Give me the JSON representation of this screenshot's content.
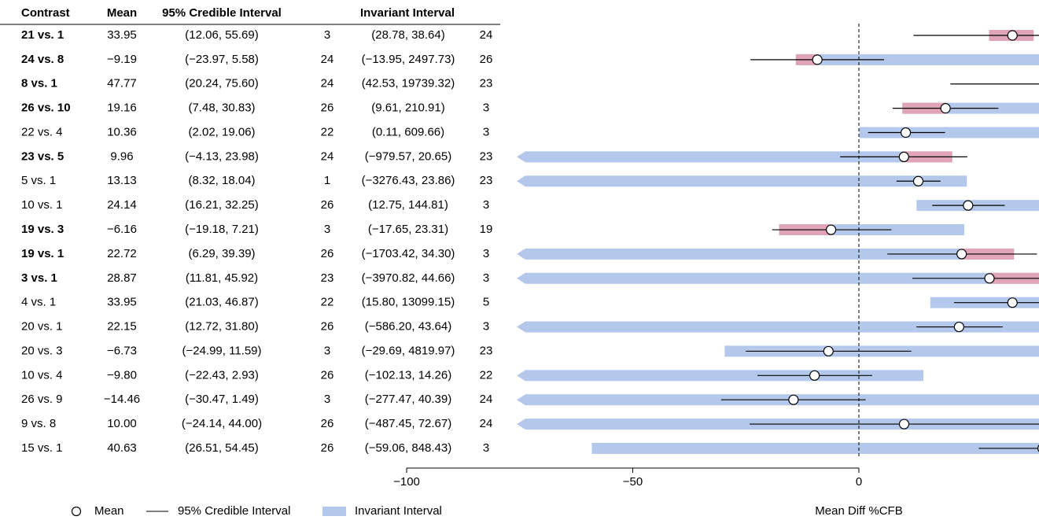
{
  "chart_data": {
    "type": "forest",
    "columns": [
      "Contrast",
      "Mean",
      "95% Credible Interval",
      "Invariant Interval"
    ],
    "categories": [
      "21 vs. 1",
      "24 vs. 8",
      "8 vs. 1",
      "26 vs. 10",
      "22 vs. 4",
      "23 vs. 5",
      "5 vs. 1",
      "10 vs. 1",
      "19 vs. 3",
      "19 vs. 1",
      "3 vs. 1",
      "4 vs. 1",
      "20 vs. 1",
      "20 vs. 3",
      "10 vs. 4",
      "26 vs. 9",
      "9 vs. 8",
      "15 vs. 1"
    ],
    "mean": {
      "name": "Mean",
      "values": [
        33.95,
        -9.19,
        47.77,
        19.16,
        10.36,
        9.96,
        13.13,
        24.14,
        -6.16,
        22.72,
        28.87,
        33.95,
        22.15,
        -6.73,
        -9.8,
        -14.46,
        10.0,
        40.63
      ],
      "value_labels": [
        "33.95",
        "−9.19",
        "47.77",
        "19.16",
        "10.36",
        "9.96",
        "13.13",
        "24.14",
        "−6.16",
        "22.72",
        "28.87",
        "33.95",
        "22.15",
        "−6.73",
        "−9.80",
        "−14.46",
        "10.00",
        "40.63"
      ]
    },
    "credible": {
      "name": "95% Credible Interval",
      "color": "#000000",
      "low": [
        12.06,
        -23.97,
        20.24,
        7.48,
        2.02,
        -4.13,
        8.32,
        16.21,
        -19.18,
        6.29,
        11.81,
        21.03,
        12.72,
        -24.99,
        -22.43,
        -30.47,
        -24.14,
        26.51
      ],
      "high": [
        55.69,
        5.58,
        75.6,
        30.83,
        19.06,
        23.98,
        18.04,
        32.25,
        7.21,
        39.39,
        45.92,
        46.87,
        31.8,
        11.59,
        2.93,
        1.49,
        44.0,
        54.45
      ],
      "labels": [
        "(12.06, 55.69)",
        "(−23.97, 5.58)",
        "(20.24, 75.60)",
        "(7.48, 30.83)",
        "(2.02, 19.06)",
        "(−4.13, 23.98)",
        "(8.32, 18.04)",
        "(16.21, 32.25)",
        "(−19.18, 7.21)",
        "(6.29, 39.39)",
        "(11.81, 45.92)",
        "(21.03, 46.87)",
        "(12.72, 31.80)",
        "(−24.99, 11.59)",
        "(−22.43, 2.93)",
        "(−30.47, 1.49)",
        "(−24.14, 44.00)",
        "(26.51, 54.45)"
      ],
      "n": [
        3,
        24,
        24,
        26,
        22,
        24,
        1,
        26,
        3,
        26,
        23,
        22,
        26,
        3,
        26,
        3,
        26,
        26
      ]
    },
    "invariant": {
      "name": "Invariant Interval",
      "color": "#b4c8ec",
      "conflict_color": "#e0a4b8",
      "low": [
        28.78,
        -13.95,
        42.53,
        9.61,
        0.11,
        -979.57,
        -3276.43,
        12.75,
        -17.65,
        -1703.42,
        -3970.82,
        15.8,
        -586.2,
        -29.69,
        -102.13,
        -277.47,
        -487.45,
        -59.06
      ],
      "high": [
        38.64,
        2497.73,
        19739.32,
        210.91,
        609.66,
        20.65,
        23.86,
        144.81,
        23.31,
        34.3,
        44.66,
        13099.15,
        43.64,
        4819.97,
        14.26,
        40.39,
        72.67,
        848.43
      ],
      "labels": [
        "(28.78, 38.64)",
        "(−13.95, 2497.73)",
        "(42.53, 19739.32)",
        "(9.61, 210.91)",
        "(0.11, 609.66)",
        "(−979.57, 20.65)",
        "(−3276.43, 23.86)",
        "(12.75, 144.81)",
        "(−17.65, 23.31)",
        "(−1703.42, 34.30)",
        "(−3970.82, 44.66)",
        "(15.80, 13099.15)",
        "(−586.20, 43.64)",
        "(−29.69, 4819.97)",
        "(−102.13, 14.26)",
        "(−277.47, 40.39)",
        "(−487.45, 72.67)",
        "(−59.06, 848.43)"
      ],
      "n": [
        24,
        26,
        23,
        3,
        3,
        23,
        23,
        3,
        19,
        3,
        3,
        5,
        3,
        23,
        22,
        24,
        24,
        3
      ]
    },
    "xlabel": "Mean Diff %CFB",
    "xlim": [
      -100,
      40
    ],
    "xticks": [
      {
        "value": -100,
        "label": "−100"
      },
      {
        "value": -50,
        "label": "−50"
      },
      0
    ],
    "refline": 0
  }
}
